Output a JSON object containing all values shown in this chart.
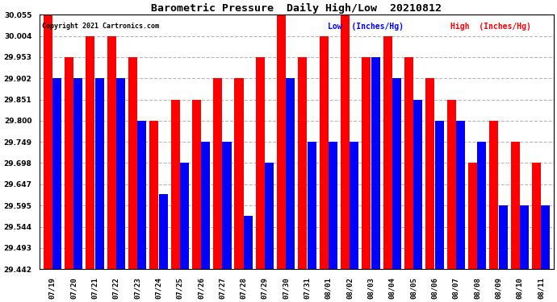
{
  "title": "Barometric Pressure  Daily High/Low  20210812",
  "copyright": "Copyright 2021 Cartronics.com",
  "legend_low": "Low  (Inches/Hg)",
  "legend_high": "High  (Inches/Hg)",
  "dates": [
    "07/19",
    "07/20",
    "07/21",
    "07/22",
    "07/23",
    "07/24",
    "07/25",
    "07/26",
    "07/27",
    "07/28",
    "07/29",
    "07/30",
    "07/31",
    "08/01",
    "08/02",
    "08/03",
    "08/04",
    "08/05",
    "08/06",
    "08/07",
    "08/08",
    "08/09",
    "08/10",
    "08/11"
  ],
  "high_values": [
    30.055,
    29.953,
    30.004,
    30.004,
    29.953,
    29.8,
    29.851,
    29.851,
    29.902,
    29.902,
    29.953,
    30.055,
    29.953,
    30.004,
    30.055,
    29.953,
    30.004,
    29.953,
    29.902,
    29.851,
    29.698,
    29.8,
    29.749,
    29.698
  ],
  "low_values": [
    29.902,
    29.902,
    29.902,
    29.902,
    29.8,
    29.622,
    29.698,
    29.749,
    29.749,
    29.571,
    29.698,
    29.902,
    29.749,
    29.749,
    29.749,
    29.953,
    29.902,
    29.851,
    29.8,
    29.8,
    29.749,
    29.595,
    29.595,
    29.595
  ],
  "ymin": 29.442,
  "ymax": 30.055,
  "yticks": [
    29.442,
    29.493,
    29.544,
    29.595,
    29.647,
    29.698,
    29.749,
    29.8,
    29.851,
    29.902,
    29.953,
    30.004,
    30.055
  ],
  "bar_color_high": "#ff0000",
  "bar_color_low": "#0000ff",
  "bg_color": "#ffffff",
  "grid_color": "#b0b0b0",
  "title_color": "#000000",
  "copyright_color": "#000000",
  "legend_low_color": "#0000ff",
  "legend_high_color": "#ff0000"
}
